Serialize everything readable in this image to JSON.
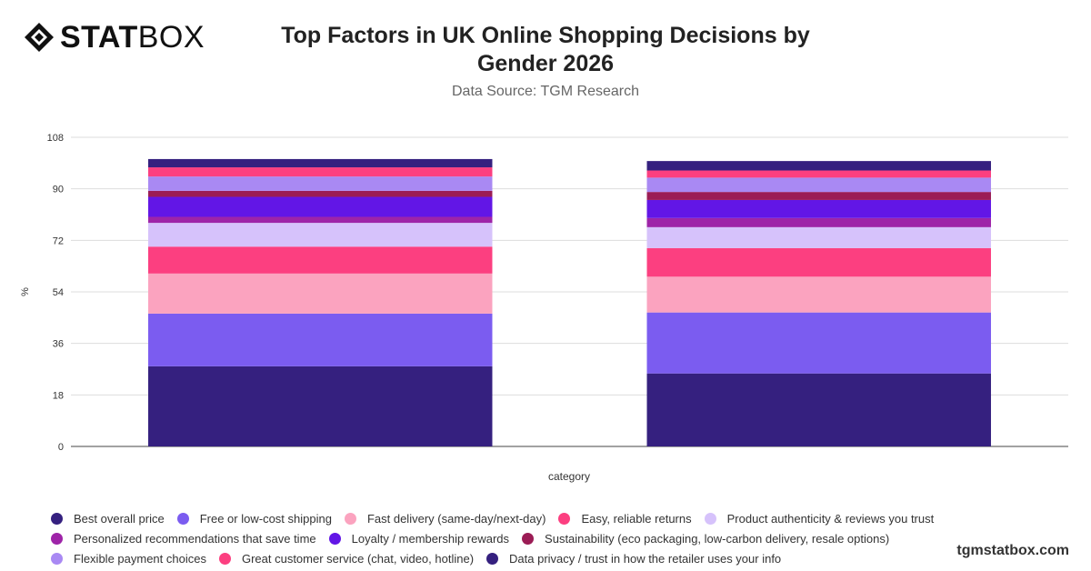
{
  "brand": {
    "logo_bold": "STAT",
    "logo_light": "BOX",
    "site": "tgmstatbox.com"
  },
  "chart_data": {
    "type": "bar",
    "stacked": true,
    "title": "Top Factors in UK Online Shopping Decisions by Gender 2026",
    "subtitle": "Data Source: TGM Research",
    "xlabel": "category",
    "ylabel": "%",
    "ylim": [
      0,
      108
    ],
    "yticks": [
      0,
      18,
      36,
      54,
      72,
      90,
      108
    ],
    "grid": true,
    "legend_position": "bottom",
    "categories": [
      "",
      ""
    ],
    "series": [
      {
        "name": "Best overall price",
        "color": "#35207f",
        "values": [
          28,
          25.5
        ]
      },
      {
        "name": "Free or low-cost shipping",
        "color": "#7b5cf0",
        "values": [
          18.4,
          21.3
        ]
      },
      {
        "name": "Fast delivery (same-day/next-day)",
        "color": "#fba3bf",
        "values": [
          14,
          12.5
        ]
      },
      {
        "name": "Easy, reliable returns",
        "color": "#fc3f80",
        "values": [
          9.4,
          10
        ]
      },
      {
        "name": "Product authenticity & reviews you trust",
        "color": "#d6c2fb",
        "values": [
          8.3,
          7.3
        ]
      },
      {
        "name": "Personalized recommendations that save time",
        "color": "#9e24a8",
        "values": [
          2.1,
          3.2
        ]
      },
      {
        "name": "Loyalty / membership rewards",
        "color": "#6216e6",
        "values": [
          7,
          6.3
        ]
      },
      {
        "name": "Sustainability (eco packaging, low-carbon delivery, resale options)",
        "color": "#9b1c55",
        "values": [
          2.1,
          2.8
        ]
      },
      {
        "name": "Flexible payment choices",
        "color": "#a989f3",
        "values": [
          5,
          5
        ]
      },
      {
        "name": "Great customer service (chat, video, hotline)",
        "color": "#fc3f80",
        "values": [
          3.2,
          2.5
        ]
      },
      {
        "name": "Data privacy / trust in how the retailer uses your info",
        "color": "#35207f",
        "values": [
          2.9,
          3.3
        ]
      }
    ]
  }
}
